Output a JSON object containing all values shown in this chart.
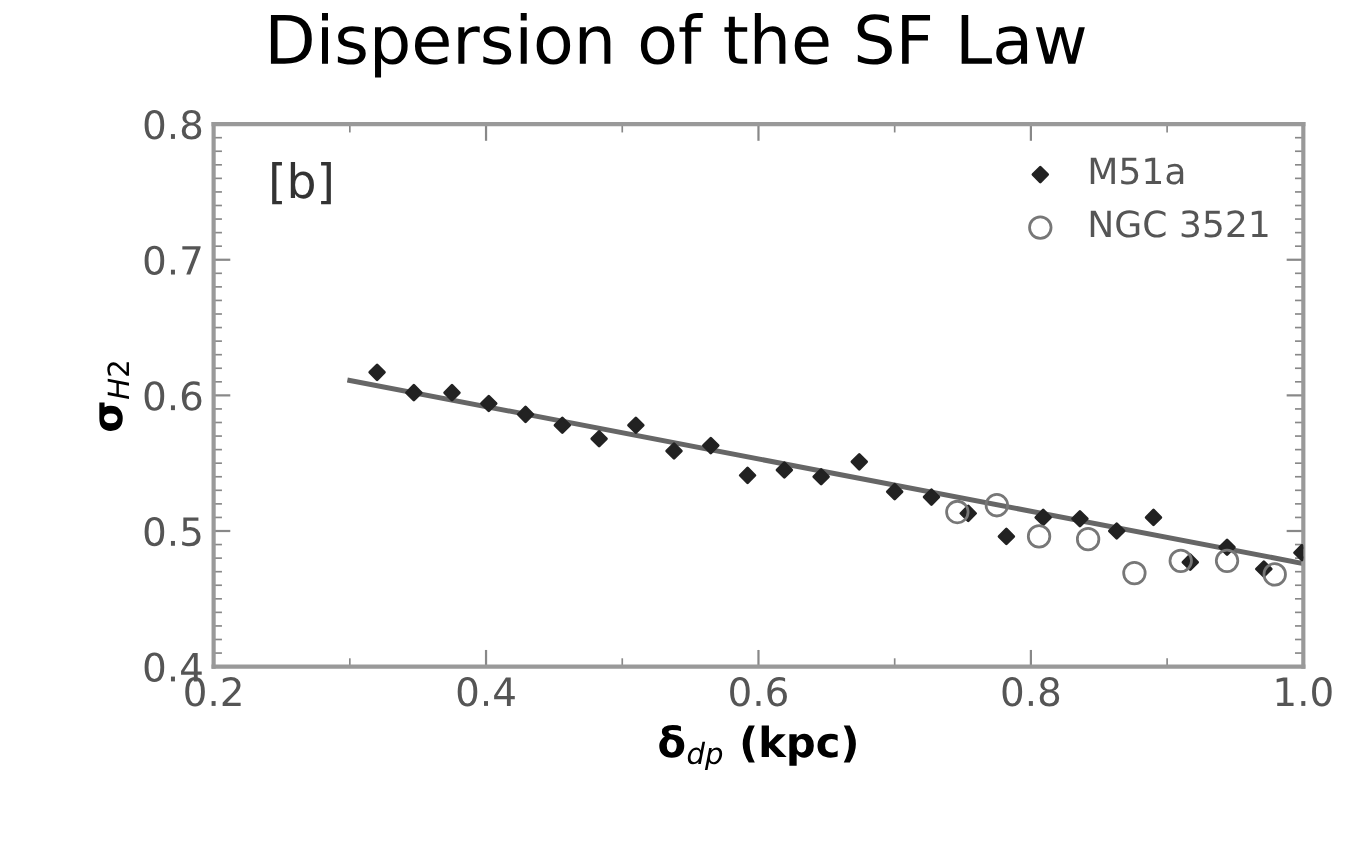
{
  "chart_data": {
    "type": "scatter",
    "title": "Dispersion of the SF Law",
    "xlabel": "δ$_{dp}$ (kpc)",
    "ylabel": "σ$_{H2}$",
    "annotations": [
      "[b]"
    ],
    "series": [
      {
        "name": "M51a",
        "color": "#222222",
        "marker": "diamond",
        "x": [
          0.32,
          0.347,
          0.375,
          0.402,
          0.429,
          0.456,
          0.483,
          0.51,
          0.538,
          0.565,
          0.592,
          0.619,
          0.646,
          0.674,
          0.7,
          0.727,
          0.754,
          0.782,
          0.809,
          0.836,
          0.863,
          0.89,
          0.917,
          0.944,
          0.971,
          0.999
        ],
        "values": [
          0.617,
          0.602,
          0.602,
          0.594,
          0.586,
          0.578,
          0.568,
          0.578,
          0.559,
          0.563,
          0.541,
          0.545,
          0.54,
          0.551,
          0.529,
          0.525,
          0.513,
          0.496,
          0.51,
          0.509,
          0.5,
          0.51,
          0.477,
          0.488,
          0.472,
          0.484
        ]
      },
      {
        "name": "NGC 3521",
        "color": "#777777",
        "marker": "circle",
        "x": [
          0.746,
          0.775,
          0.806,
          0.842,
          0.876,
          0.91,
          0.944,
          0.979
        ],
        "values": [
          0.514,
          0.519,
          0.496,
          0.494,
          0.469,
          0.478,
          0.478,
          0.468
        ]
      },
      {
        "type": "line",
        "color": "#666666",
        "x": [
          0.3,
          1.0
        ],
        "values": [
          0.611,
          0.476
        ]
      }
    ],
    "xlim": [
      0.2,
      1.0
    ],
    "ylim": [
      0.4,
      0.8
    ],
    "xticks": [
      0.2,
      0.4,
      0.6,
      0.8,
      {
        "value": 1.0,
        "label": "1.0"
      }
    ],
    "yticks": [
      0.4,
      0.5,
      0.6,
      0.7,
      0.8
    ],
    "grid": false,
    "legend": "top right"
  }
}
